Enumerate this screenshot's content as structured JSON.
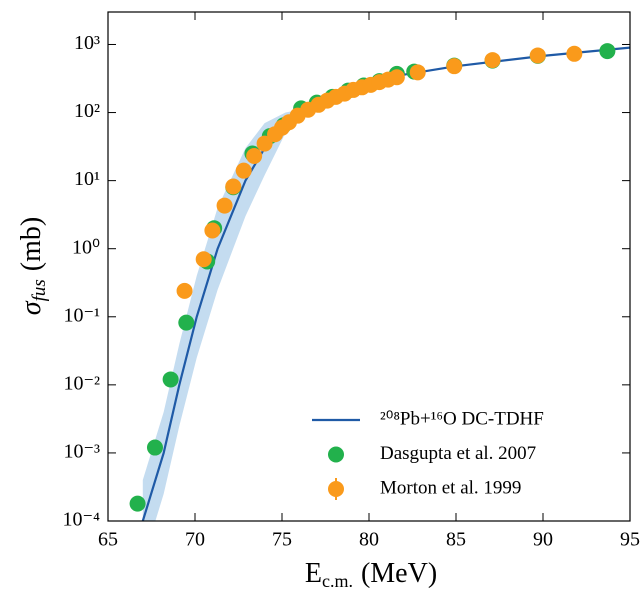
{
  "chart_data": {
    "type": "scatter",
    "x_label": {
      "symbol": "E",
      "subscript": "c.m.",
      "unit": "(MeV)"
    },
    "y_label": {
      "symbol": "σ",
      "subscript": "fus",
      "unit": "(mb)"
    },
    "xlim": [
      65,
      95
    ],
    "xticks": [
      65,
      70,
      75,
      80,
      85,
      90,
      95
    ],
    "ylim": [
      0.0001,
      3000
    ],
    "yscale": "log",
    "yticks": [
      {
        "value": 0.0001,
        "label": "10⁻⁴"
      },
      {
        "value": 0.001,
        "label": "10⁻³"
      },
      {
        "value": 0.01,
        "label": "10⁻²"
      },
      {
        "value": 0.1,
        "label": "10⁻¹"
      },
      {
        "value": 1,
        "label": "10⁰"
      },
      {
        "value": 10,
        "label": "10¹"
      },
      {
        "value": 100,
        "label": "10²"
      },
      {
        "value": 1000,
        "label": "10³"
      }
    ],
    "legend": "lower right",
    "series": [
      {
        "name": "²⁰⁸Pb+¹⁶O DC-TDHF",
        "kind": "line",
        "color": "#1f5aa6",
        "band_color": "#c4dcf0",
        "x": [
          67.0,
          68.2,
          69.1,
          70.1,
          71.3,
          72.9,
          74.0,
          75.2,
          76,
          77,
          78,
          80,
          82,
          85,
          90,
          95
        ],
        "values": [
          0.0001,
          0.001,
          0.01,
          0.1,
          1,
          10,
          30,
          75,
          100,
          135,
          170,
          260,
          360,
          480,
          680,
          900
        ],
        "band_lower": [
          2.5e-05,
          0.00025,
          0.0025,
          0.025,
          0.25,
          3,
          12,
          50,
          90,
          128,
          165,
          255,
          355,
          475,
          675,
          895
        ],
        "band_upper": [
          0.0004,
          0.004,
          0.04,
          0.4,
          4,
          30,
          70,
          100,
          110,
          140,
          175,
          265,
          365,
          485,
          685,
          905
        ]
      },
      {
        "name": "Dasgupta et al. 2007",
        "kind": "points",
        "color": "#22b14c",
        "x": [
          66.7,
          67.7,
          68.6,
          69.5,
          70.7,
          71.1,
          72.2,
          73.3,
          74.3,
          75.1,
          76.1,
          77.0,
          77.9,
          78.8,
          79.7,
          80.6,
          81.6,
          82.6,
          84.9,
          87.1,
          89.7,
          93.7
        ],
        "values": [
          0.00018,
          0.0012,
          0.012,
          0.082,
          0.65,
          2.0,
          8.0,
          25,
          45,
          65,
          115,
          140,
          170,
          210,
          250,
          290,
          370,
          400,
          490,
          580,
          680,
          800
        ]
      },
      {
        "name": "Morton et al. 1999",
        "kind": "points",
        "color": "#fa9a1b",
        "x": [
          69.4,
          70.5,
          71.0,
          71.7,
          72.2,
          72.8,
          73.4,
          74.0,
          74.6,
          75.0,
          75.4,
          75.9,
          76.5,
          77.1,
          77.6,
          78.1,
          78.6,
          79.1,
          79.6,
          80.1,
          80.6,
          81.1,
          81.6,
          82.8,
          84.9,
          87.1,
          89.7,
          91.8
        ],
        "values": [
          0.24,
          0.7,
          1.85,
          4.3,
          8.2,
          14,
          23,
          35,
          48,
          60,
          72,
          90,
          110,
          130,
          150,
          170,
          190,
          215,
          235,
          255,
          280,
          305,
          330,
          390,
          480,
          590,
          690,
          730
        ]
      }
    ]
  }
}
